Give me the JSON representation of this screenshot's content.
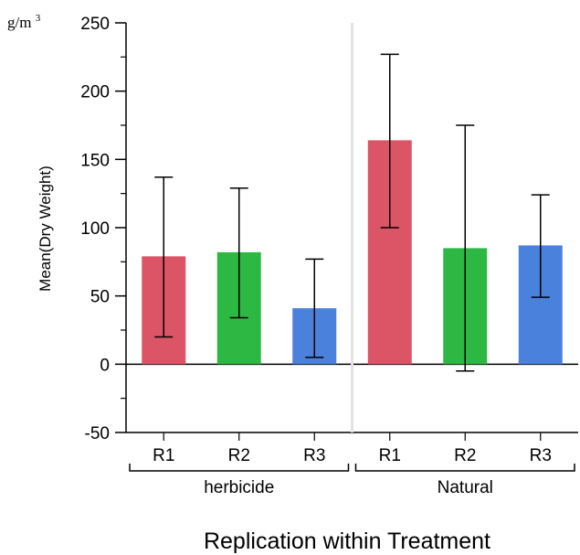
{
  "unit_label": {
    "base": "g/m",
    "superscript": "3"
  },
  "chart_data": {
    "type": "bar",
    "ylabel": "Mean(Dry Weight)",
    "xlabel": "Replication within Treatment",
    "ylim": [
      -50,
      250
    ],
    "yticks": [
      -50,
      0,
      50,
      100,
      150,
      200,
      250
    ],
    "grid": false,
    "groups": [
      {
        "name": "herbicide",
        "bars": [
          {
            "label": "R1",
            "value": 79,
            "err_low": 20,
            "err_high": 137,
            "color": "#db5566"
          },
          {
            "label": "R2",
            "value": 82,
            "err_low": 34,
            "err_high": 129,
            "color": "#2db843"
          },
          {
            "label": "R3",
            "value": 41,
            "err_low": 5,
            "err_high": 77,
            "color": "#4a81dc"
          }
        ]
      },
      {
        "name": "Natural",
        "bars": [
          {
            "label": "R1",
            "value": 164,
            "err_low": 100,
            "err_high": 227,
            "color": "#db5566"
          },
          {
            "label": "R2",
            "value": 85,
            "err_low": -5,
            "err_high": 175,
            "color": "#2db843"
          },
          {
            "label": "R3",
            "value": 87,
            "err_low": 49,
            "err_high": 124,
            "color": "#4a81dc"
          }
        ]
      }
    ]
  }
}
